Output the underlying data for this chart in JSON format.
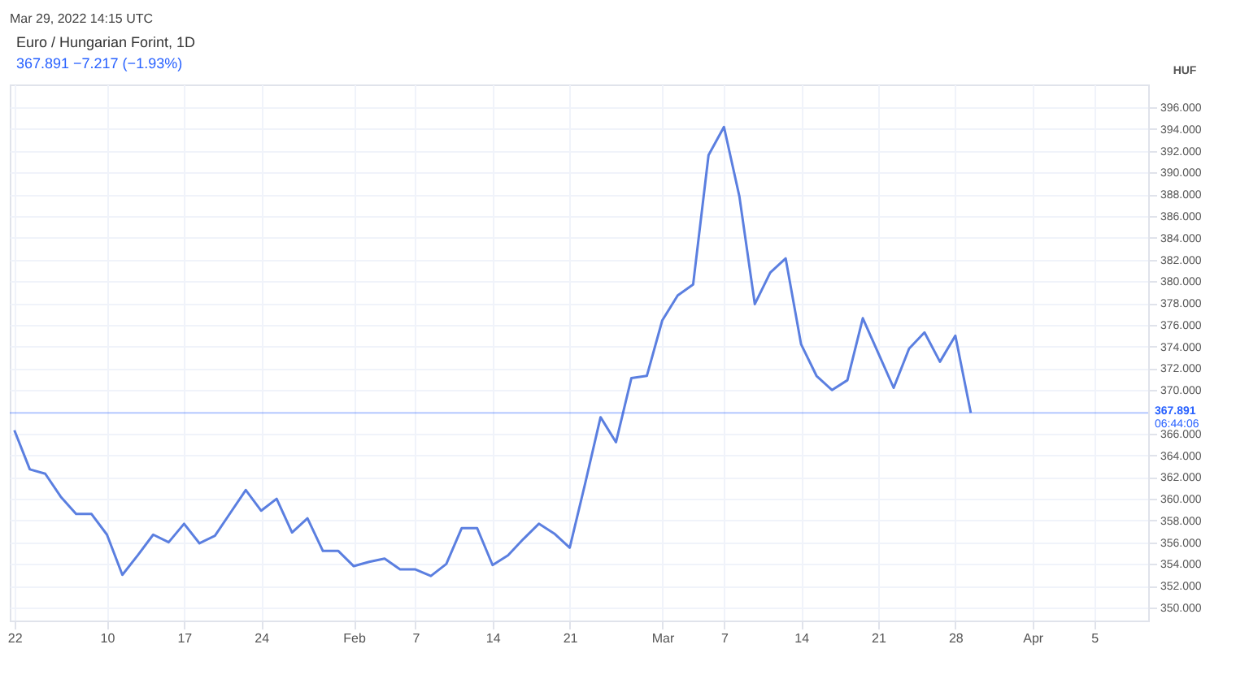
{
  "chart_data": {
    "type": "line",
    "title": "Euro / Hungarian Forint, 1D",
    "subtitle": "367.891  −7.217 (−1.93%)",
    "ylabel": "HUF",
    "annotations": [
      "Mar 29, 2022 14:15 UTC",
      "06:44:06"
    ],
    "categories": [
      "22",
      null,
      null,
      null,
      null,
      null,
      "10",
      null,
      null,
      null,
      null,
      "17",
      null,
      null,
      null,
      null,
      "24",
      null,
      null,
      null,
      null,
      null,
      "Feb",
      null,
      null,
      null,
      "7",
      null,
      null,
      null,
      null,
      "14",
      null,
      null,
      null,
      null,
      "21",
      null,
      null,
      null,
      null,
      null,
      "Mar",
      null,
      null,
      null,
      "7",
      null,
      null,
      null,
      null,
      "14",
      null,
      null,
      null,
      null,
      "21",
      null,
      null,
      null,
      null,
      "28",
      null,
      null,
      null,
      null,
      "Apr",
      null,
      null,
      null,
      "5",
      null,
      null,
      null
    ],
    "series": [
      {
        "color": "#5b7fe0",
        "values": [
          366.3,
          362.7,
          362.3,
          360.2,
          358.6,
          358.6,
          356.7,
          353.0,
          354.8,
          356.7,
          356.0,
          357.7,
          355.9,
          356.6,
          358.7,
          360.8,
          358.9,
          360.0,
          356.9,
          358.2,
          355.2,
          355.2,
          353.8,
          354.2,
          354.5,
          353.5,
          353.5,
          352.9,
          354.0,
          357.3,
          357.3,
          353.9,
          354.8,
          356.3,
          357.7,
          356.8,
          355.5,
          361.4,
          367.5,
          365.2,
          371.1,
          371.3,
          376.4,
          378.7,
          379.7,
          391.6,
          394.2,
          387.8,
          377.9,
          380.8,
          382.1,
          374.2,
          371.3,
          370.0,
          370.9,
          376.6,
          373.4,
          370.2,
          373.8,
          375.3,
          372.6,
          375.0,
          367.9,
          null,
          null,
          null,
          null,
          null,
          null,
          null,
          null,
          null,
          null,
          null
        ]
      }
    ],
    "ylim": [
      348.8,
      398.1
    ],
    "yticks": [
      {
        "value": 350,
        "label": "350.000"
      },
      {
        "value": 352,
        "label": "352.000"
      },
      {
        "value": 354,
        "label": "354.000"
      },
      {
        "value": 356,
        "label": "356.000"
      },
      {
        "value": 358,
        "label": "358.000"
      },
      {
        "value": 360,
        "label": "360.000"
      },
      {
        "value": 362,
        "label": "362.000"
      },
      {
        "value": 364,
        "label": "364.000"
      },
      {
        "value": 366,
        "label": "366.000"
      },
      {
        "value": 370,
        "label": "370.000"
      },
      {
        "value": 372,
        "label": "372.000"
      },
      {
        "value": 374,
        "label": "374.000"
      },
      {
        "value": 376,
        "label": "376.000"
      },
      {
        "value": 378,
        "label": "378.000"
      },
      {
        "value": 380,
        "label": "380.000"
      },
      {
        "value": 382,
        "label": "382.000"
      },
      {
        "value": 384,
        "label": "384.000"
      },
      {
        "value": 386,
        "label": "386.000"
      },
      {
        "value": 388,
        "label": "388.000"
      },
      {
        "value": 390,
        "label": "390.000"
      },
      {
        "value": 392,
        "label": "392.000"
      },
      {
        "value": 394,
        "label": "394.000"
      },
      {
        "value": 396,
        "label": "396.000"
      }
    ],
    "ref_lines": [
      {
        "axis": "y",
        "value": 367.891,
        "label": "367.891",
        "color": "#2962ff"
      }
    ],
    "grid": true,
    "marker": "none",
    "line_style": "solid"
  }
}
